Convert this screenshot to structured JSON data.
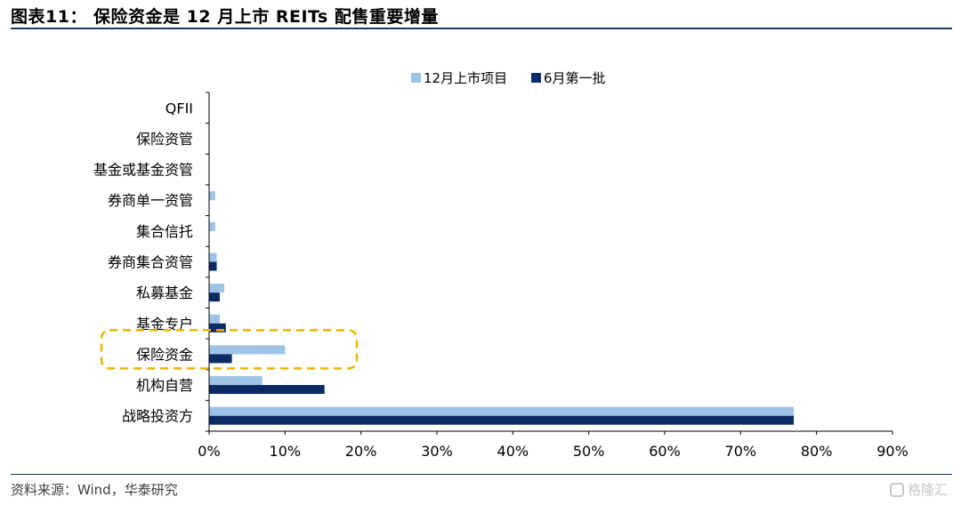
{
  "figure": {
    "title": "图表11： 保险资金是 12 月上市 REITs 配售重要增量",
    "source": "资料来源：Wind，华泰研究",
    "watermark": "格隆汇"
  },
  "colors": {
    "series_12": "#9dc3e6",
    "series_6": "#0b2a66",
    "highlight": "#f0b400",
    "axis": "#000000",
    "rule": "#1f3864"
  },
  "chart_data": {
    "type": "bar",
    "orientation": "horizontal",
    "categories": [
      "QFII",
      "保险资管",
      "基金或基金资管",
      "券商单一资管",
      "集合信托",
      "券商集合资管",
      "私募基金",
      "基金专户",
      "保险资金",
      "机构自营",
      "战略投资方"
    ],
    "series": [
      {
        "name": "12月上市项目",
        "values": [
          0,
          0,
          0,
          0.8,
          0.8,
          1.0,
          2.0,
          1.4,
          10.0,
          7.0,
          77.0
        ]
      },
      {
        "name": "6月第一批",
        "values": [
          0,
          0,
          0,
          0,
          0,
          1.0,
          1.4,
          2.2,
          3.0,
          15.2,
          77.0
        ]
      }
    ],
    "xlim": [
      0,
      90
    ],
    "xticks": [
      "0%",
      "10%",
      "20%",
      "30%",
      "40%",
      "50%",
      "60%",
      "70%",
      "80%",
      "90%"
    ],
    "legend_position": "top",
    "grid": false,
    "highlighted_category": "保险资金"
  }
}
